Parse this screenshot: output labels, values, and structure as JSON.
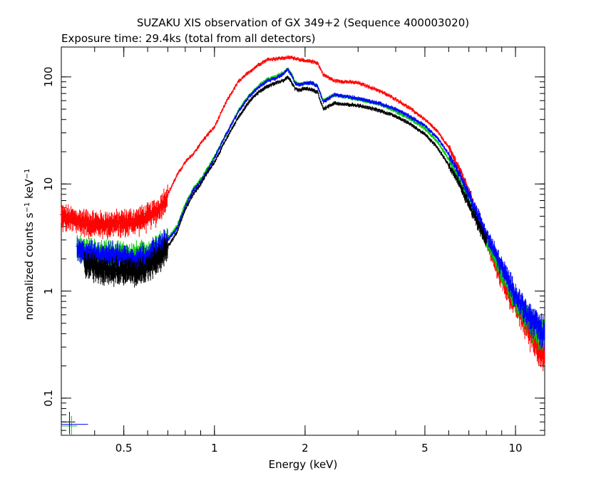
{
  "chart_data": {
    "type": "scatter",
    "title": "SUZAKU XIS observation of GX 349+2 (Sequence 400003020)",
    "subtitle": "Exposure time: 29.4ks (total from all detectors)",
    "xlabel": "Energy (keV)",
    "ylabel_main": "normalized counts s",
    "ylabel_sup1": "−1",
    "ylabel_mid": " keV",
    "ylabel_sup2": "−1",
    "x_scale": "log",
    "y_scale": "log",
    "xlim": [
      0.31,
      12.5
    ],
    "ylim": [
      0.045,
      190
    ],
    "x_ticks": [
      {
        "value": 0.5,
        "label": "0.5"
      },
      {
        "value": 1,
        "label": "1"
      },
      {
        "value": 2,
        "label": "2"
      },
      {
        "value": 5,
        "label": "5"
      },
      {
        "value": 10,
        "label": "10"
      }
    ],
    "y_ticks": [
      {
        "value": 0.1,
        "label": "0.1"
      },
      {
        "value": 1,
        "label": "1"
      },
      {
        "value": 10,
        "label": "10"
      },
      {
        "value": 100,
        "label": "100"
      }
    ],
    "grid": false,
    "legend": "none",
    "series": [
      {
        "color": "#ff0000",
        "x": [
          0.31,
          0.35,
          0.4,
          0.45,
          0.5,
          0.55,
          0.6,
          0.65,
          0.7,
          0.75,
          0.8,
          0.85,
          0.9,
          0.95,
          1.0,
          1.1,
          1.2,
          1.3,
          1.4,
          1.5,
          1.6,
          1.7,
          1.8,
          1.9,
          2.0,
          2.1,
          2.2,
          2.3,
          2.5,
          3.0,
          3.5,
          4.0,
          4.5,
          5.0,
          5.5,
          6.0,
          6.5,
          7.0,
          7.5,
          8.0,
          8.5,
          9.0,
          9.5,
          10.0,
          11.0,
          12.0,
          12.5
        ],
        "y": [
          5.0,
          4.6,
          4.3,
          4.3,
          4.4,
          4.6,
          5.0,
          5.8,
          8.0,
          12,
          16,
          19,
          24,
          29,
          34,
          60,
          90,
          110,
          130,
          145,
          148,
          150,
          152,
          147,
          140,
          140,
          135,
          105,
          92,
          88,
          75,
          62,
          50,
          40,
          31,
          22,
          14,
          8.5,
          5.0,
          3.0,
          1.9,
          1.3,
          0.95,
          0.75,
          0.45,
          0.3,
          0.25
        ]
      },
      {
        "color": "#00cc00",
        "x": [
          0.35,
          0.4,
          0.45,
          0.5,
          0.55,
          0.6,
          0.65,
          0.7,
          0.75,
          0.8,
          0.85,
          0.9,
          0.95,
          1.0,
          1.1,
          1.2,
          1.3,
          1.4,
          1.5,
          1.6,
          1.7,
          1.75,
          1.8,
          1.85,
          1.9,
          2.0,
          2.1,
          2.2,
          2.3,
          2.5,
          3.0,
          3.5,
          4.0,
          4.5,
          5.0,
          5.5,
          6.0,
          6.5,
          7.0,
          7.5,
          8.0,
          8.5,
          9.0,
          9.5,
          10.0,
          11.0,
          12.0,
          12.5
        ],
        "y": [
          2.5,
          2.3,
          2.3,
          2.2,
          2.2,
          2.3,
          2.6,
          3.1,
          4.0,
          6.5,
          9.0,
          11,
          14,
          18,
          30,
          48,
          66,
          82,
          95,
          100,
          110,
          118,
          108,
          90,
          85,
          88,
          88,
          82,
          60,
          68,
          62,
          56,
          48,
          40,
          33,
          25,
          17,
          11,
          7.0,
          4.5,
          3.0,
          2.1,
          1.5,
          1.1,
          0.85,
          0.55,
          0.42,
          0.38
        ]
      },
      {
        "color": "#0000ff",
        "x": [
          0.35,
          0.4,
          0.45,
          0.5,
          0.55,
          0.6,
          0.65,
          0.7,
          0.75,
          0.8,
          0.85,
          0.9,
          0.95,
          1.0,
          1.1,
          1.2,
          1.3,
          1.4,
          1.5,
          1.6,
          1.7,
          1.75,
          1.8,
          1.85,
          1.9,
          2.0,
          2.1,
          2.2,
          2.3,
          2.5,
          3.0,
          3.5,
          4.0,
          4.5,
          5.0,
          5.5,
          6.0,
          6.5,
          7.0,
          7.5,
          8.0,
          8.5,
          9.0,
          9.5,
          10.0,
          11.0,
          12.0,
          12.5
        ],
        "y": [
          2.4,
          2.2,
          2.2,
          2.1,
          2.0,
          2.2,
          2.5,
          3.0,
          3.8,
          6.2,
          8.7,
          10.5,
          13.5,
          17.5,
          30,
          47,
          65,
          80,
          92,
          97,
          108,
          118,
          105,
          88,
          84,
          87,
          88,
          82,
          58,
          68,
          63,
          57,
          50,
          42,
          35,
          27,
          19,
          12.5,
          8.0,
          5.2,
          3.4,
          2.4,
          1.7,
          1.25,
          0.95,
          0.6,
          0.45,
          0.4
        ]
      },
      {
        "color": "#000000",
        "x": [
          0.37,
          0.4,
          0.45,
          0.5,
          0.55,
          0.6,
          0.65,
          0.7,
          0.75,
          0.8,
          0.85,
          0.9,
          0.95,
          1.0,
          1.1,
          1.2,
          1.3,
          1.4,
          1.5,
          1.6,
          1.7,
          1.75,
          1.8,
          1.85,
          1.9,
          2.0,
          2.1,
          2.2,
          2.3,
          2.5,
          3.0,
          3.5,
          4.0,
          4.5,
          5.0,
          5.5,
          6.0,
          6.5,
          7.0,
          7.5,
          8.0
        ],
        "y": [
          1.8,
          1.7,
          1.6,
          1.6,
          1.5,
          1.7,
          2.0,
          2.6,
          3.5,
          5.8,
          8.0,
          10,
          13,
          16,
          27,
          42,
          58,
          72,
          82,
          88,
          93,
          100,
          90,
          78,
          75,
          78,
          76,
          72,
          50,
          57,
          54,
          49,
          43,
          36,
          29,
          22,
          15,
          10,
          6.5,
          4.3,
          3.0
        ]
      }
    ],
    "residual_markers": [
      {
        "color": "#000000",
        "x": 0.33,
        "y": 0.06
      },
      {
        "color": "#00cc00",
        "x": 0.335,
        "y": 0.055
      },
      {
        "color": "#0000ff",
        "x": 0.33,
        "y": 0.057
      }
    ]
  }
}
